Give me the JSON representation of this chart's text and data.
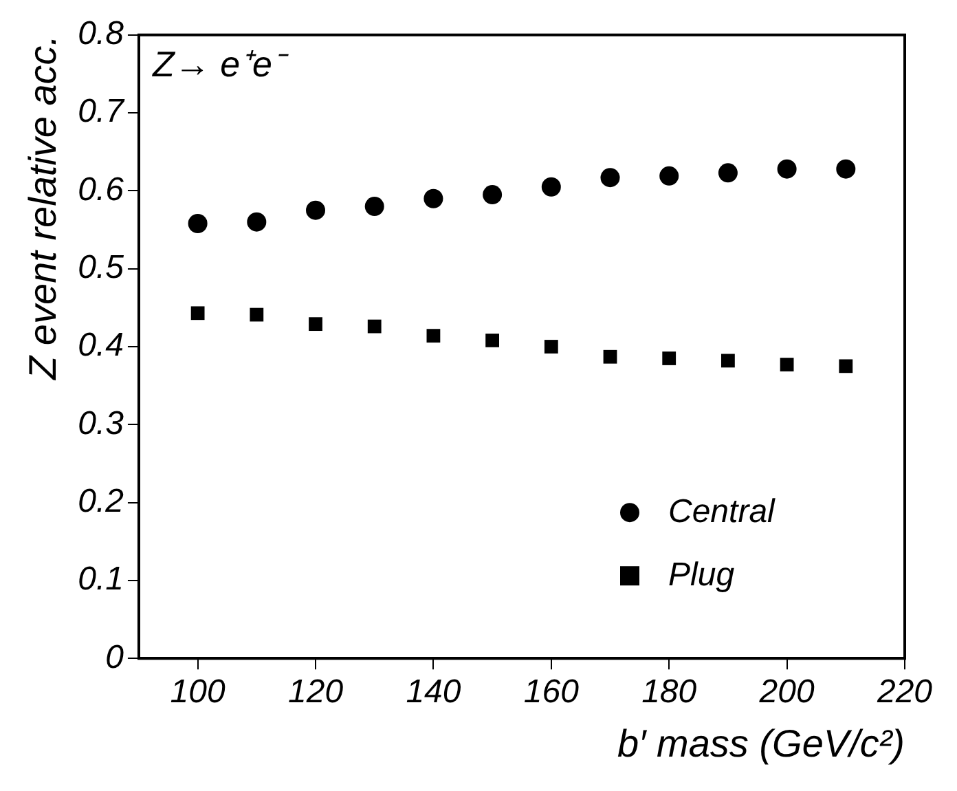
{
  "chart_data": {
    "type": "scatter",
    "xlabel": "b′ mass (GeV/c²)",
    "ylabel": "Z event relative acc.",
    "annotations": [
      "Z→ e⁺e⁻"
    ],
    "x": [
      100,
      110,
      120,
      130,
      140,
      150,
      160,
      170,
      180,
      190,
      200,
      210
    ],
    "series": [
      {
        "name": "Central",
        "color": "#000000",
        "marker": "circle",
        "values": [
          0.558,
          0.56,
          0.575,
          0.58,
          0.59,
          0.595,
          0.605,
          0.617,
          0.619,
          0.623,
          0.628,
          0.628
        ]
      },
      {
        "name": "Plug",
        "color": "#000000",
        "marker": "square",
        "values": [
          0.443,
          0.441,
          0.429,
          0.426,
          0.414,
          0.408,
          0.4,
          0.387,
          0.385,
          0.382,
          0.377,
          0.375
        ]
      }
    ],
    "xlim": [
      90,
      220
    ],
    "xticks": [
      100,
      120,
      140,
      160,
      180,
      200,
      220
    ],
    "ylim": [
      0,
      0.8
    ],
    "yticks": [
      0,
      0.1,
      0.2,
      0.3,
      0.4,
      0.5,
      0.6,
      0.7,
      0.8
    ],
    "grid": false,
    "legend": "bottom right"
  }
}
